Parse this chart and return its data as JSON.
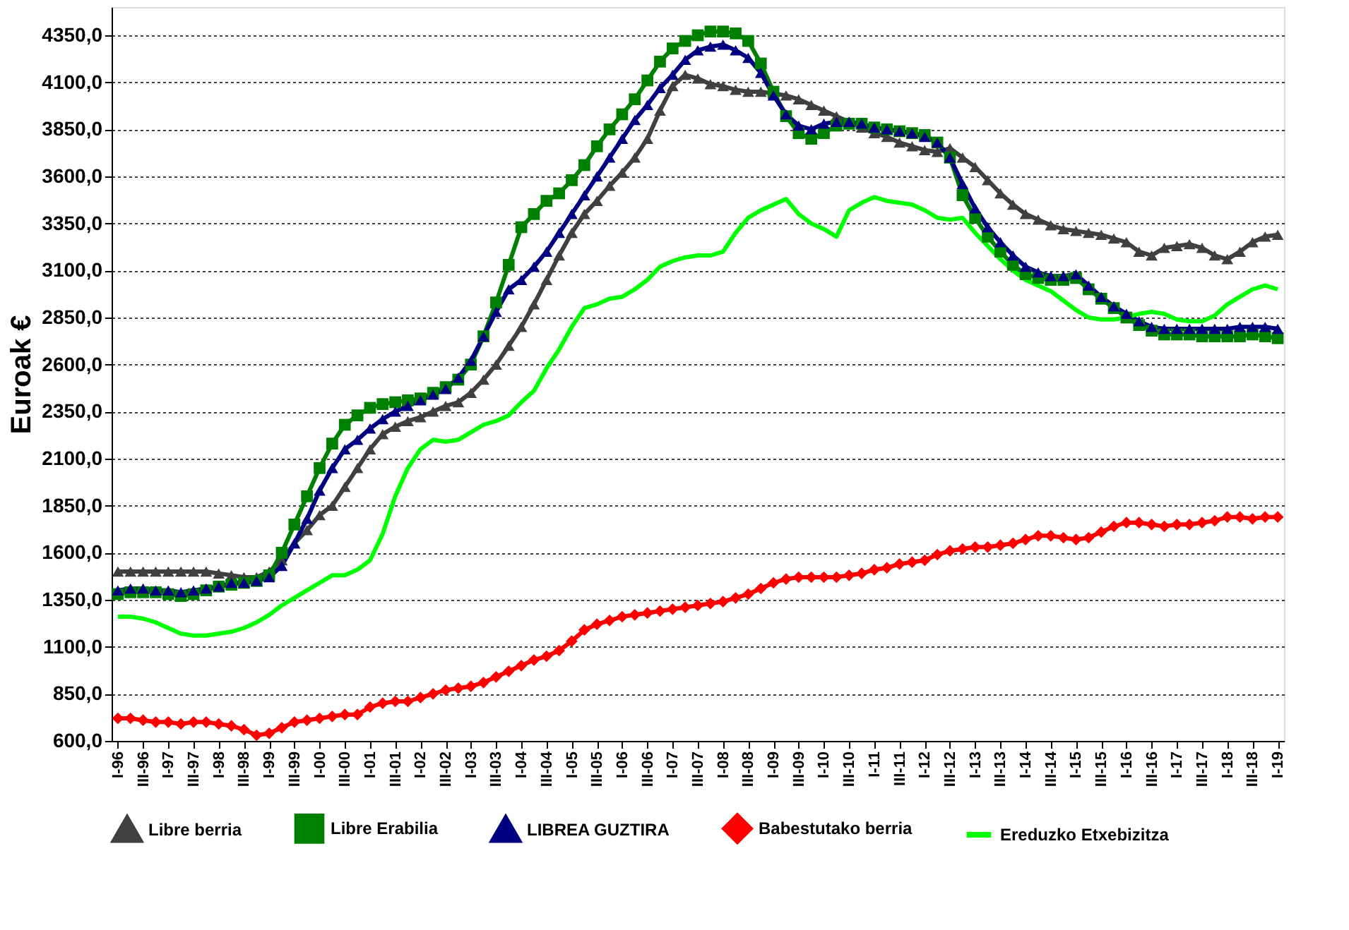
{
  "chart_data": {
    "type": "line",
    "ylabel": "Euroak €",
    "categories": [
      "I-96",
      null,
      "III-96",
      null,
      "I-97",
      null,
      "III-97",
      null,
      "I-98",
      null,
      "III-98",
      null,
      "I-99",
      null,
      "III-99",
      null,
      "I-00",
      null,
      "III-00",
      null,
      "I-01",
      null,
      "III-01",
      null,
      "I-02",
      null,
      "III-02",
      null,
      "I-03",
      null,
      "III-03",
      null,
      "I-04",
      null,
      "III-04",
      null,
      "I-05",
      null,
      "III-05",
      null,
      "I-06",
      null,
      "III-06",
      null,
      "I-07",
      null,
      "III-07",
      null,
      "I-08",
      null,
      "III-08",
      null,
      "I-09",
      null,
      "III-09",
      null,
      "I-10",
      null,
      "III-10",
      null,
      "I-11",
      null,
      "III-11",
      null,
      "I-12",
      null,
      "III-12",
      null,
      "I-13",
      null,
      "III-13",
      null,
      "I-14",
      null,
      "III-14",
      null,
      "I-15",
      null,
      "III-15",
      null,
      "I-16",
      null,
      "III-16",
      null,
      "I-17",
      null,
      "III-17",
      null,
      "I-18",
      null,
      "III-18",
      null,
      "I-19"
    ],
    "series": [
      {
        "name": "Libre berria",
        "color": "#404040",
        "marker": "triangle",
        "values": [
          1500,
          1500,
          1500,
          1500,
          1500,
          1500,
          1500,
          1500,
          1490,
          1480,
          1470,
          1470,
          1500,
          1560,
          1650,
          1720,
          1800,
          1850,
          1950,
          2050,
          2150,
          2230,
          2270,
          2300,
          2320,
          2350,
          2380,
          2400,
          2450,
          2520,
          2600,
          2700,
          2800,
          2920,
          3050,
          3180,
          3300,
          3400,
          3470,
          3550,
          3620,
          3700,
          3800,
          3950,
          4080,
          4140,
          4120,
          4090,
          4080,
          4060,
          4050,
          4050,
          4040,
          4030,
          4010,
          3980,
          3950,
          3920,
          3890,
          3860,
          3830,
          3810,
          3780,
          3760,
          3740,
          3730,
          3750,
          3700,
          3650,
          3580,
          3510,
          3450,
          3400,
          3370,
          3340,
          3320,
          3310,
          3300,
          3290,
          3270,
          3250,
          3200,
          3180,
          3220,
          3230,
          3240,
          3220,
          3180,
          3160,
          3200,
          3250,
          3280,
          3290
        ]
      },
      {
        "name": "Libre Erabilia",
        "color": "#008000",
        "marker": "square",
        "values": [
          1380,
          1390,
          1390,
          1390,
          1380,
          1370,
          1380,
          1400,
          1420,
          1430,
          1440,
          1450,
          1480,
          1600,
          1750,
          1900,
          2050,
          2180,
          2280,
          2330,
          2370,
          2390,
          2400,
          2410,
          2420,
          2450,
          2480,
          2520,
          2600,
          2750,
          2930,
          3130,
          3330,
          3400,
          3470,
          3510,
          3580,
          3660,
          3760,
          3850,
          3930,
          4010,
          4110,
          4210,
          4280,
          4320,
          4350,
          4370,
          4370,
          4360,
          4320,
          4200,
          4050,
          3920,
          3830,
          3800,
          3830,
          3870,
          3880,
          3880,
          3860,
          3850,
          3840,
          3830,
          3820,
          3780,
          3700,
          3500,
          3380,
          3280,
          3200,
          3130,
          3080,
          3060,
          3050,
          3050,
          3060,
          3000,
          2950,
          2900,
          2850,
          2810,
          2780,
          2760,
          2760,
          2760,
          2750,
          2750,
          2750,
          2750,
          2760,
          2750,
          2740
        ]
      },
      {
        "name": "LIBREA GUZTIRA",
        "color": "#000080",
        "marker": "triangle",
        "values": [
          1400,
          1410,
          1410,
          1400,
          1400,
          1390,
          1400,
          1410,
          1420,
          1440,
          1440,
          1450,
          1470,
          1530,
          1650,
          1780,
          1930,
          2050,
          2150,
          2200,
          2260,
          2310,
          2350,
          2380,
          2410,
          2440,
          2470,
          2530,
          2620,
          2750,
          2880,
          3000,
          3050,
          3120,
          3200,
          3300,
          3400,
          3500,
          3600,
          3700,
          3800,
          3900,
          3980,
          4070,
          4140,
          4220,
          4270,
          4290,
          4300,
          4270,
          4230,
          4150,
          4030,
          3930,
          3870,
          3850,
          3880,
          3890,
          3890,
          3880,
          3860,
          3850,
          3840,
          3830,
          3810,
          3780,
          3700,
          3560,
          3430,
          3330,
          3250,
          3180,
          3120,
          3090,
          3070,
          3070,
          3080,
          3020,
          2960,
          2910,
          2870,
          2830,
          2800,
          2790,
          2790,
          2790,
          2790,
          2790,
          2790,
          2800,
          2800,
          2800,
          2790
        ]
      },
      {
        "name": "Babestutako berria",
        "color": "#ff0000",
        "marker": "diamond",
        "values": [
          720,
          720,
          710,
          700,
          700,
          690,
          700,
          700,
          690,
          680,
          660,
          630,
          640,
          670,
          700,
          710,
          720,
          730,
          740,
          740,
          780,
          800,
          810,
          810,
          830,
          850,
          870,
          880,
          890,
          910,
          940,
          970,
          1000,
          1030,
          1050,
          1080,
          1130,
          1190,
          1220,
          1240,
          1260,
          1270,
          1280,
          1290,
          1300,
          1310,
          1320,
          1330,
          1340,
          1360,
          1380,
          1410,
          1440,
          1460,
          1470,
          1470,
          1470,
          1470,
          1480,
          1490,
          1510,
          1520,
          1540,
          1550,
          1560,
          1590,
          1610,
          1620,
          1630,
          1630,
          1640,
          1650,
          1670,
          1690,
          1690,
          1680,
          1670,
          1680,
          1710,
          1740,
          1760,
          1760,
          1750,
          1740,
          1750,
          1750,
          1760,
          1770,
          1790,
          1790,
          1780,
          1790,
          1790
        ]
      },
      {
        "name": "Ereduzko Etxebizitza",
        "color": "#00ff00",
        "marker": "none",
        "values": [
          1260,
          1260,
          1250,
          1230,
          1200,
          1170,
          1160,
          1160,
          1170,
          1180,
          1200,
          1230,
          1270,
          1320,
          1360,
          1400,
          1440,
          1480,
          1480,
          1510,
          1560,
          1700,
          1900,
          2050,
          2150,
          2200,
          2190,
          2200,
          2240,
          2280,
          2300,
          2330,
          2400,
          2460,
          2580,
          2680,
          2800,
          2900,
          2920,
          2950,
          2960,
          3000,
          3050,
          3120,
          3150,
          3170,
          3180,
          3180,
          3200,
          3300,
          3380,
          3420,
          3450,
          3480,
          3400,
          3350,
          3320,
          3280,
          3420,
          3460,
          3490,
          3470,
          3460,
          3450,
          3420,
          3380,
          3370,
          3380,
          3300,
          3230,
          3160,
          3100,
          3050,
          3020,
          2990,
          2940,
          2890,
          2850,
          2840,
          2840,
          2850,
          2870,
          2880,
          2870,
          2840,
          2830,
          2830,
          2860,
          2920,
          2960,
          3000,
          3020,
          3000
        ]
      }
    ],
    "ylim": [
      600,
      4500
    ],
    "yticks": [
      {
        "value": 600,
        "label": "600,0"
      },
      {
        "value": 850,
        "label": "850,0"
      },
      {
        "value": 1100,
        "label": "1100,0"
      },
      {
        "value": 1350,
        "label": "1350,0"
      },
      {
        "value": 1600,
        "label": "1600,0"
      },
      {
        "value": 1850,
        "label": "1850,0"
      },
      {
        "value": 2100,
        "label": "2100,0"
      },
      {
        "value": 2350,
        "label": "2350,0"
      },
      {
        "value": 2600,
        "label": "2600,0"
      },
      {
        "value": 2850,
        "label": "2850,0"
      },
      {
        "value": 3100,
        "label": "3100,0"
      },
      {
        "value": 3350,
        "label": "3350,0"
      },
      {
        "value": 3600,
        "label": "3600,0"
      },
      {
        "value": 3850,
        "label": "3850,0"
      },
      {
        "value": 4100,
        "label": "4100,0"
      },
      {
        "value": 4350,
        "label": "4350,0"
      }
    ],
    "grid": "y",
    "legend": "bottom",
    "line_style": "solid"
  }
}
